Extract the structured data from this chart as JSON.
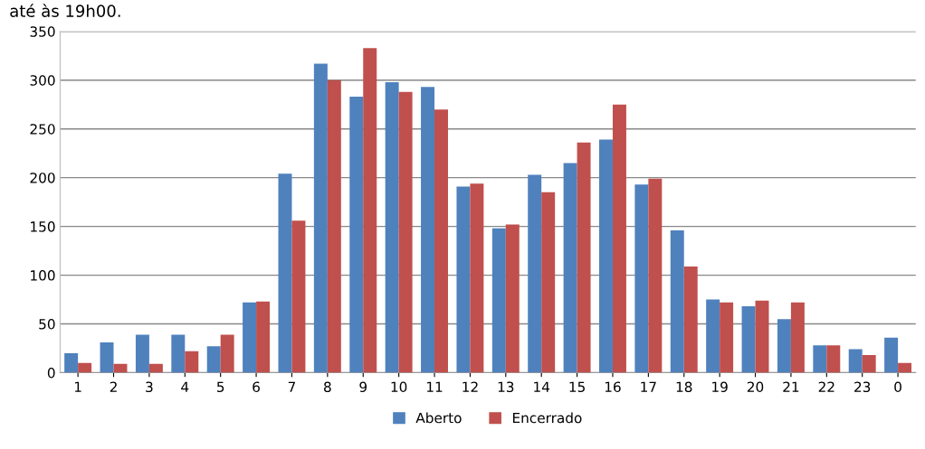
{
  "chart_data": {
    "type": "bar",
    "annotations": [
      "até às 19h00."
    ],
    "categories": [
      "1",
      "2",
      "3",
      "4",
      "5",
      "6",
      "7",
      "8",
      "9",
      "10",
      "11",
      "12",
      "13",
      "14",
      "15",
      "16",
      "17",
      "18",
      "19",
      "20",
      "21",
      "22",
      "23",
      "0"
    ],
    "series": [
      {
        "name": "Aberto",
        "color": "#4f81bd",
        "values": [
          20,
          31,
          39,
          39,
          27,
          72,
          204,
          317,
          283,
          298,
          293,
          191,
          148,
          203,
          215,
          239,
          193,
          146,
          75,
          68,
          55,
          28,
          24,
          36
        ]
      },
      {
        "name": "Encerrado",
        "color": "#c0504d",
        "values": [
          10,
          9,
          9,
          22,
          39,
          73,
          156,
          300,
          333,
          288,
          270,
          194,
          152,
          185,
          236,
          275,
          199,
          109,
          72,
          74,
          72,
          28,
          18,
          10
        ]
      }
    ],
    "ylim": [
      0,
      350
    ],
    "yticks": [
      0,
      50,
      100,
      150,
      200,
      250,
      300,
      350
    ],
    "grid": "y",
    "legend": "bottom"
  }
}
